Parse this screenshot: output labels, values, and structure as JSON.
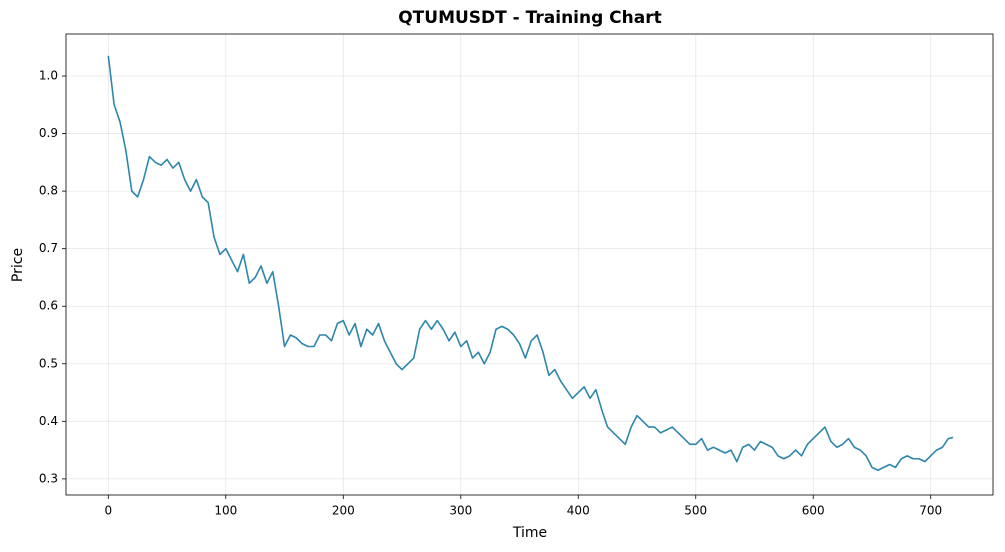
{
  "chart_data": {
    "type": "line",
    "title": "QTUMUSDT - Training Chart",
    "x_label": "Time",
    "y_label": "Price",
    "x": [
      0,
      5,
      10,
      15,
      20,
      25,
      30,
      35,
      40,
      45,
      50,
      55,
      60,
      65,
      70,
      75,
      80,
      85,
      90,
      95,
      100,
      105,
      110,
      115,
      120,
      125,
      130,
      135,
      140,
      145,
      150,
      155,
      160,
      165,
      170,
      175,
      180,
      185,
      190,
      195,
      200,
      205,
      210,
      215,
      220,
      225,
      230,
      235,
      240,
      245,
      250,
      255,
      260,
      265,
      270,
      275,
      280,
      285,
      290,
      295,
      300,
      305,
      310,
      315,
      320,
      325,
      330,
      335,
      340,
      345,
      350,
      355,
      360,
      365,
      370,
      375,
      380,
      385,
      390,
      395,
      400,
      405,
      410,
      415,
      420,
      425,
      430,
      435,
      440,
      445,
      450,
      455,
      460,
      465,
      470,
      475,
      480,
      485,
      490,
      495,
      500,
      505,
      510,
      515,
      520,
      525,
      530,
      535,
      540,
      545,
      550,
      555,
      560,
      565,
      570,
      575,
      580,
      585,
      590,
      595,
      600,
      605,
      610,
      615,
      620,
      625,
      630,
      635,
      640,
      645,
      650,
      655,
      660,
      665,
      670,
      675,
      680,
      685,
      690,
      695,
      700,
      705,
      710,
      715,
      719
    ],
    "series": [
      {
        "name": "Price",
        "color": "#2e86ab",
        "values": [
          1.035,
          0.95,
          0.92,
          0.87,
          0.8,
          0.79,
          0.82,
          0.86,
          0.85,
          0.845,
          0.855,
          0.84,
          0.85,
          0.82,
          0.8,
          0.82,
          0.79,
          0.78,
          0.72,
          0.69,
          0.7,
          0.68,
          0.66,
          0.69,
          0.64,
          0.65,
          0.67,
          0.64,
          0.66,
          0.6,
          0.53,
          0.55,
          0.545,
          0.535,
          0.53,
          0.53,
          0.55,
          0.55,
          0.54,
          0.57,
          0.575,
          0.55,
          0.57,
          0.53,
          0.56,
          0.55,
          0.57,
          0.54,
          0.52,
          0.5,
          0.49,
          0.5,
          0.51,
          0.56,
          0.575,
          0.56,
          0.575,
          0.56,
          0.54,
          0.555,
          0.53,
          0.54,
          0.51,
          0.52,
          0.5,
          0.52,
          0.56,
          0.565,
          0.56,
          0.55,
          0.535,
          0.51,
          0.54,
          0.55,
          0.52,
          0.48,
          0.49,
          0.47,
          0.455,
          0.44,
          0.45,
          0.46,
          0.44,
          0.455,
          0.42,
          0.39,
          0.38,
          0.37,
          0.36,
          0.39,
          0.41,
          0.4,
          0.39,
          0.39,
          0.38,
          0.385,
          0.39,
          0.38,
          0.37,
          0.36,
          0.36,
          0.37,
          0.35,
          0.355,
          0.35,
          0.345,
          0.35,
          0.33,
          0.355,
          0.36,
          0.35,
          0.365,
          0.36,
          0.355,
          0.34,
          0.335,
          0.34,
          0.35,
          0.34,
          0.36,
          0.37,
          0.38,
          0.39,
          0.365,
          0.355,
          0.36,
          0.37,
          0.355,
          0.35,
          0.34,
          0.32,
          0.315,
          0.32,
          0.325,
          0.32,
          0.335,
          0.34,
          0.335,
          0.335,
          0.33,
          0.34,
          0.35,
          0.355,
          0.37,
          0.372
        ]
      }
    ],
    "xlim": [
      -36,
      753
    ],
    "ylim": [
      0.272,
      1.073
    ],
    "xticks": [
      0,
      100,
      200,
      300,
      400,
      500,
      600,
      700
    ],
    "yticks": [
      0.3,
      0.4,
      0.5,
      0.6,
      0.7,
      0.8,
      0.9,
      {
        "value": 1,
        "label": "1.0"
      }
    ],
    "grid": true
  }
}
